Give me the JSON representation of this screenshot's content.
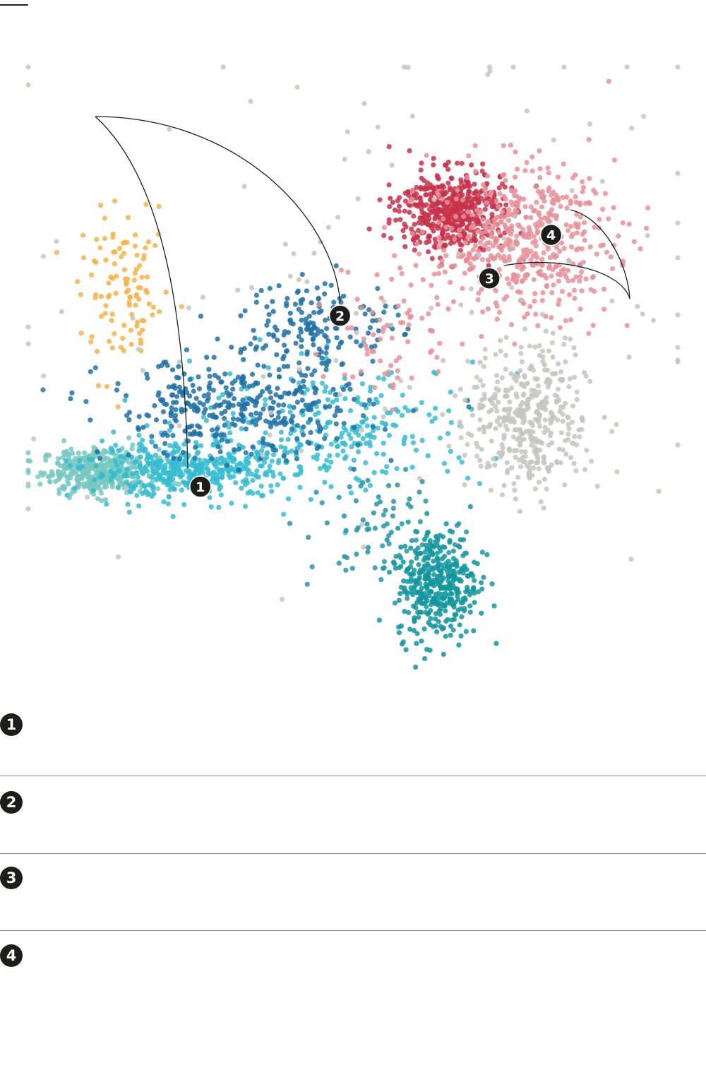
{
  "chart_data": {
    "type": "scatter",
    "title": "",
    "xlabel": "",
    "ylabel": "",
    "grid": false,
    "legend": "none",
    "xlim": [
      0,
      100
    ],
    "ylim": [
      0,
      100
    ],
    "clusters": [
      {
        "color": "#77c9c0",
        "center": [
          11,
          35
        ],
        "spread": [
          4.5,
          1.8
        ],
        "count": 420
      },
      {
        "color": "#35bcd1",
        "center": [
          25,
          35
        ],
        "spread": [
          8,
          2.2
        ],
        "count": 430
      },
      {
        "color": "#35bcd1",
        "center": [
          48,
          42
        ],
        "spread": [
          11,
          5
        ],
        "count": 260
      },
      {
        "color": "#1e72a6",
        "center": [
          32,
          45
        ],
        "spread": [
          10,
          4
        ],
        "count": 380
      },
      {
        "color": "#1e72a6",
        "center": [
          45,
          59
        ],
        "spread": [
          6,
          3.5
        ],
        "count": 160
      },
      {
        "color": "#f4b247",
        "center": [
          15,
          63
        ],
        "spread": [
          3.5,
          6
        ],
        "count": 110
      },
      {
        "color": "#c8324a",
        "center": [
          65,
          77
        ],
        "spread": [
          4,
          3.2
        ],
        "count": 520
      },
      {
        "color": "#e69199",
        "center": [
          76,
          72
        ],
        "spread": [
          7,
          6
        ],
        "count": 520
      },
      {
        "color": "#e69199",
        "center": [
          56,
          58
        ],
        "spread": [
          5,
          6
        ],
        "count": 70
      },
      {
        "color": "#c5c5c0",
        "center": [
          77,
          43
        ],
        "spread": [
          4.5,
          6
        ],
        "count": 380
      },
      {
        "color": "#c5c5c0",
        "center": [
          55,
          62
        ],
        "spread": [
          28,
          22
        ],
        "count": 130
      },
      {
        "color": "#0f969c",
        "center": [
          63,
          17
        ],
        "spread": [
          3.2,
          4.5
        ],
        "count": 380
      },
      {
        "color": "#2695a6",
        "center": [
          55,
          25
        ],
        "spread": [
          6,
          5
        ],
        "count": 90
      }
    ],
    "annotations": [
      {
        "label": "1",
        "x": 26.5,
        "y": 32.5
      },
      {
        "label": "2",
        "x": 48,
        "y": 60
      },
      {
        "label": "3",
        "x": 71,
        "y": 66
      },
      {
        "label": "4",
        "x": 80.5,
        "y": 73
      }
    ]
  },
  "notes": [
    {
      "label": "1",
      "text": ""
    },
    {
      "label": "2",
      "text": ""
    },
    {
      "label": "3",
      "text": ""
    },
    {
      "label": "4",
      "text": ""
    }
  ]
}
